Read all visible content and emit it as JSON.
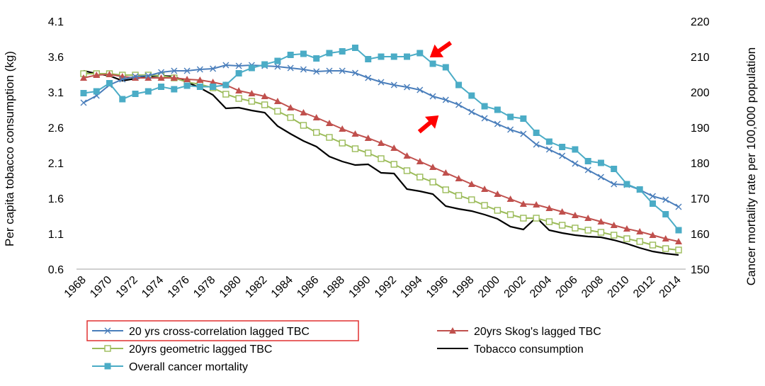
{
  "chart_data": {
    "type": "line",
    "x": [
      1968,
      1969,
      1970,
      1971,
      1972,
      1973,
      1974,
      1975,
      1976,
      1977,
      1978,
      1979,
      1980,
      1981,
      1982,
      1983,
      1984,
      1985,
      1986,
      1987,
      1988,
      1989,
      1990,
      1991,
      1992,
      1993,
      1994,
      1995,
      1996,
      1997,
      1998,
      1999,
      2000,
      2001,
      2002,
      2003,
      2004,
      2005,
      2006,
      2007,
      2008,
      2009,
      2010,
      2011,
      2012,
      2013,
      2014
    ],
    "x_tick_labels": [
      "1968",
      "1970",
      "1972",
      "1974",
      "1976",
      "1978",
      "1980",
      "1982",
      "1984",
      "1986",
      "1988",
      "1990",
      "1992",
      "1994",
      "1996",
      "1998",
      "2000",
      "2002",
      "2004",
      "2006",
      "2008",
      "2010",
      "2012",
      "2014"
    ],
    "y_left": {
      "label": "Per capita tobacco consumption (kg)",
      "ticks": [
        "0.6",
        "1.1",
        "1.6",
        "2.1",
        "2.6",
        "3.1",
        "3.6",
        "4.1"
      ],
      "ylim": [
        0.6,
        4.1
      ]
    },
    "y_right": {
      "label": "Cancer  mortality rate per 100,000 population",
      "ticks": [
        "150",
        "160",
        "170",
        "180",
        "190",
        "200",
        "210",
        "220"
      ],
      "ylim": [
        150,
        220
      ]
    },
    "series": [
      {
        "name": "20 yrs cross-correlation lagged TBC",
        "axis": "left",
        "color": "#4a7ebb",
        "marker": "x",
        "values": [
          2.95,
          3.05,
          3.2,
          3.28,
          3.32,
          3.33,
          3.38,
          3.4,
          3.4,
          3.42,
          3.43,
          3.48,
          3.47,
          3.48,
          3.47,
          3.46,
          3.44,
          3.42,
          3.39,
          3.4,
          3.4,
          3.37,
          3.3,
          3.24,
          3.2,
          3.17,
          3.13,
          3.04,
          2.99,
          2.92,
          2.82,
          2.73,
          2.65,
          2.57,
          2.51,
          2.36,
          2.29,
          2.2,
          2.09,
          2.0,
          1.9,
          1.8,
          1.79,
          1.72,
          1.63,
          1.58,
          1.48
        ]
      },
      {
        "name": "20yrs Skog's lagged TBC",
        "axis": "left",
        "color": "#c0504d",
        "marker": "triangle",
        "values": [
          3.3,
          3.34,
          3.35,
          3.32,
          3.3,
          3.3,
          3.3,
          3.3,
          3.28,
          3.27,
          3.24,
          3.2,
          3.12,
          3.08,
          3.04,
          2.97,
          2.88,
          2.81,
          2.74,
          2.66,
          2.58,
          2.51,
          2.45,
          2.38,
          2.31,
          2.2,
          2.12,
          2.04,
          1.96,
          1.88,
          1.8,
          1.73,
          1.66,
          1.59,
          1.52,
          1.51,
          1.46,
          1.41,
          1.36,
          1.32,
          1.27,
          1.22,
          1.17,
          1.13,
          1.08,
          1.03,
          0.99
        ]
      },
      {
        "name": "20yrs geometric lagged TBC",
        "axis": "left",
        "color": "#9bbb59",
        "marker": "square-open",
        "values": [
          3.36,
          3.36,
          3.36,
          3.34,
          3.34,
          3.34,
          3.33,
          3.3,
          3.24,
          3.21,
          3.16,
          3.07,
          3.01,
          2.97,
          2.92,
          2.83,
          2.74,
          2.63,
          2.53,
          2.46,
          2.38,
          2.3,
          2.24,
          2.16,
          2.08,
          1.99,
          1.9,
          1.83,
          1.72,
          1.64,
          1.58,
          1.5,
          1.43,
          1.37,
          1.32,
          1.32,
          1.27,
          1.22,
          1.18,
          1.15,
          1.12,
          1.08,
          1.03,
          0.99,
          0.94,
          0.89,
          0.87
        ]
      },
      {
        "name": "Tobacco consumption",
        "axis": "left",
        "color": "#000000",
        "marker": "none",
        "values": [
          3.4,
          3.36,
          3.33,
          3.26,
          3.29,
          3.32,
          3.33,
          3.32,
          3.24,
          3.16,
          3.06,
          2.87,
          2.88,
          2.84,
          2.81,
          2.62,
          2.51,
          2.41,
          2.33,
          2.19,
          2.12,
          2.07,
          2.08,
          1.96,
          1.95,
          1.73,
          1.7,
          1.66,
          1.49,
          1.45,
          1.42,
          1.37,
          1.31,
          1.2,
          1.16,
          1.33,
          1.15,
          1.11,
          1.08,
          1.06,
          1.05,
          1.01,
          0.96,
          0.9,
          0.85,
          0.82,
          0.8
        ]
      },
      {
        "name": "Overall cancer mortality",
        "axis": "right",
        "color": "#4bacc6",
        "marker": "square-filled",
        "values": [
          199.7,
          200.2,
          202.5,
          198.0,
          199.5,
          200.2,
          201.5,
          200.8,
          201.8,
          201.5,
          201.5,
          202.0,
          205.3,
          206.8,
          207.8,
          208.8,
          210.5,
          210.8,
          209.5,
          211.0,
          211.5,
          212.5,
          209.3,
          210.0,
          210.0,
          210.0,
          211.0,
          208.0,
          207.0,
          202.0,
          199.0,
          196.0,
          195.0,
          193.0,
          192.5,
          188.5,
          186.0,
          184.5,
          183.8,
          180.5,
          180.0,
          178.3,
          174.0,
          172.5,
          168.5,
          165.5,
          161.0
        ]
      }
    ],
    "legend": {
      "placement": "bottom",
      "highlighted_entry": "20 yrs cross-correlation lagged TBC",
      "highlight_color": "#e03030"
    },
    "annotations": [
      {
        "type": "red-arrow",
        "color": "#ff0000",
        "points_at_year": 1994,
        "series": "Overall cancer mortality"
      },
      {
        "type": "red-arrow",
        "color": "#ff0000",
        "points_at_year": 1996,
        "series": "20 yrs cross-correlation lagged TBC"
      }
    ],
    "grid": false
  }
}
